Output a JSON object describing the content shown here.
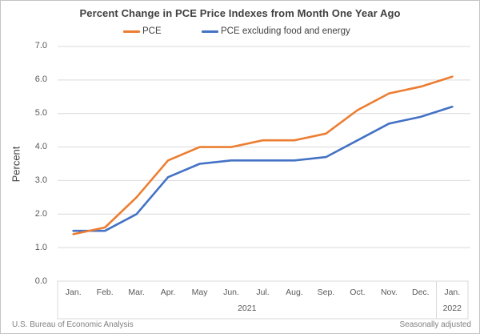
{
  "title": "Percent Change in PCE Price Indexes from Month One Year Ago",
  "legend": [
    {
      "label": "PCE",
      "color": "#ED7D31"
    },
    {
      "label": "PCE excluding food and energy",
      "color": "#4472C4"
    }
  ],
  "y_axis": {
    "title": "Percent",
    "tick_labels": [
      "7.0",
      "6.0",
      "5.0",
      "4.0",
      "3.0",
      "2.0",
      "1.0",
      "0.0"
    ]
  },
  "x_axis": {
    "month_labels": [
      "Jan.",
      "Feb.",
      "Mar.",
      "Apr.",
      "May",
      "Jun.",
      "Jul.",
      "Aug.",
      "Sep.",
      "Oct.",
      "Nov.",
      "Dec.",
      "Jan."
    ],
    "year_groups": [
      {
        "label": "2021",
        "start_index": 0,
        "month_count": 12
      },
      {
        "label": "2022",
        "start_index": 12,
        "month_count": 1
      }
    ]
  },
  "footer": {
    "left": "U.S. Bureau of Economic Analysis",
    "right": "Seasonally adjusted"
  },
  "colors": {
    "pce": "#ED7D31",
    "core_pce": "#4472C4",
    "grid": "#D9D9D9"
  },
  "chart_data": {
    "type": "line",
    "title": "Percent Change in PCE Price Indexes from Month One Year Ago",
    "categories": [
      "Jan. 2021",
      "Feb. 2021",
      "Mar. 2021",
      "Apr. 2021",
      "May 2021",
      "Jun. 2021",
      "Jul. 2021",
      "Aug. 2021",
      "Sep. 2021",
      "Oct. 2021",
      "Nov. 2021",
      "Dec. 2021",
      "Jan. 2022"
    ],
    "series": [
      {
        "name": "PCE",
        "color": "#ED7D31",
        "values": [
          1.4,
          1.6,
          2.5,
          3.6,
          4.0,
          4.0,
          4.2,
          4.2,
          4.4,
          5.1,
          5.6,
          5.8,
          6.1
        ]
      },
      {
        "name": "PCE excluding food and energy",
        "color": "#4472C4",
        "values": [
          1.5,
          1.5,
          2.0,
          3.1,
          3.5,
          3.6,
          3.6,
          3.6,
          3.7,
          4.2,
          4.7,
          4.9,
          5.2
        ]
      }
    ],
    "xlabel": "",
    "ylabel": "Percent",
    "ylim": [
      0.0,
      7.0
    ],
    "ytick_step": 1.0,
    "grid": true,
    "legend_position": "top",
    "annotations": {
      "bottom_left": "U.S. Bureau of Economic Analysis",
      "bottom_right": "Seasonally adjusted"
    }
  }
}
